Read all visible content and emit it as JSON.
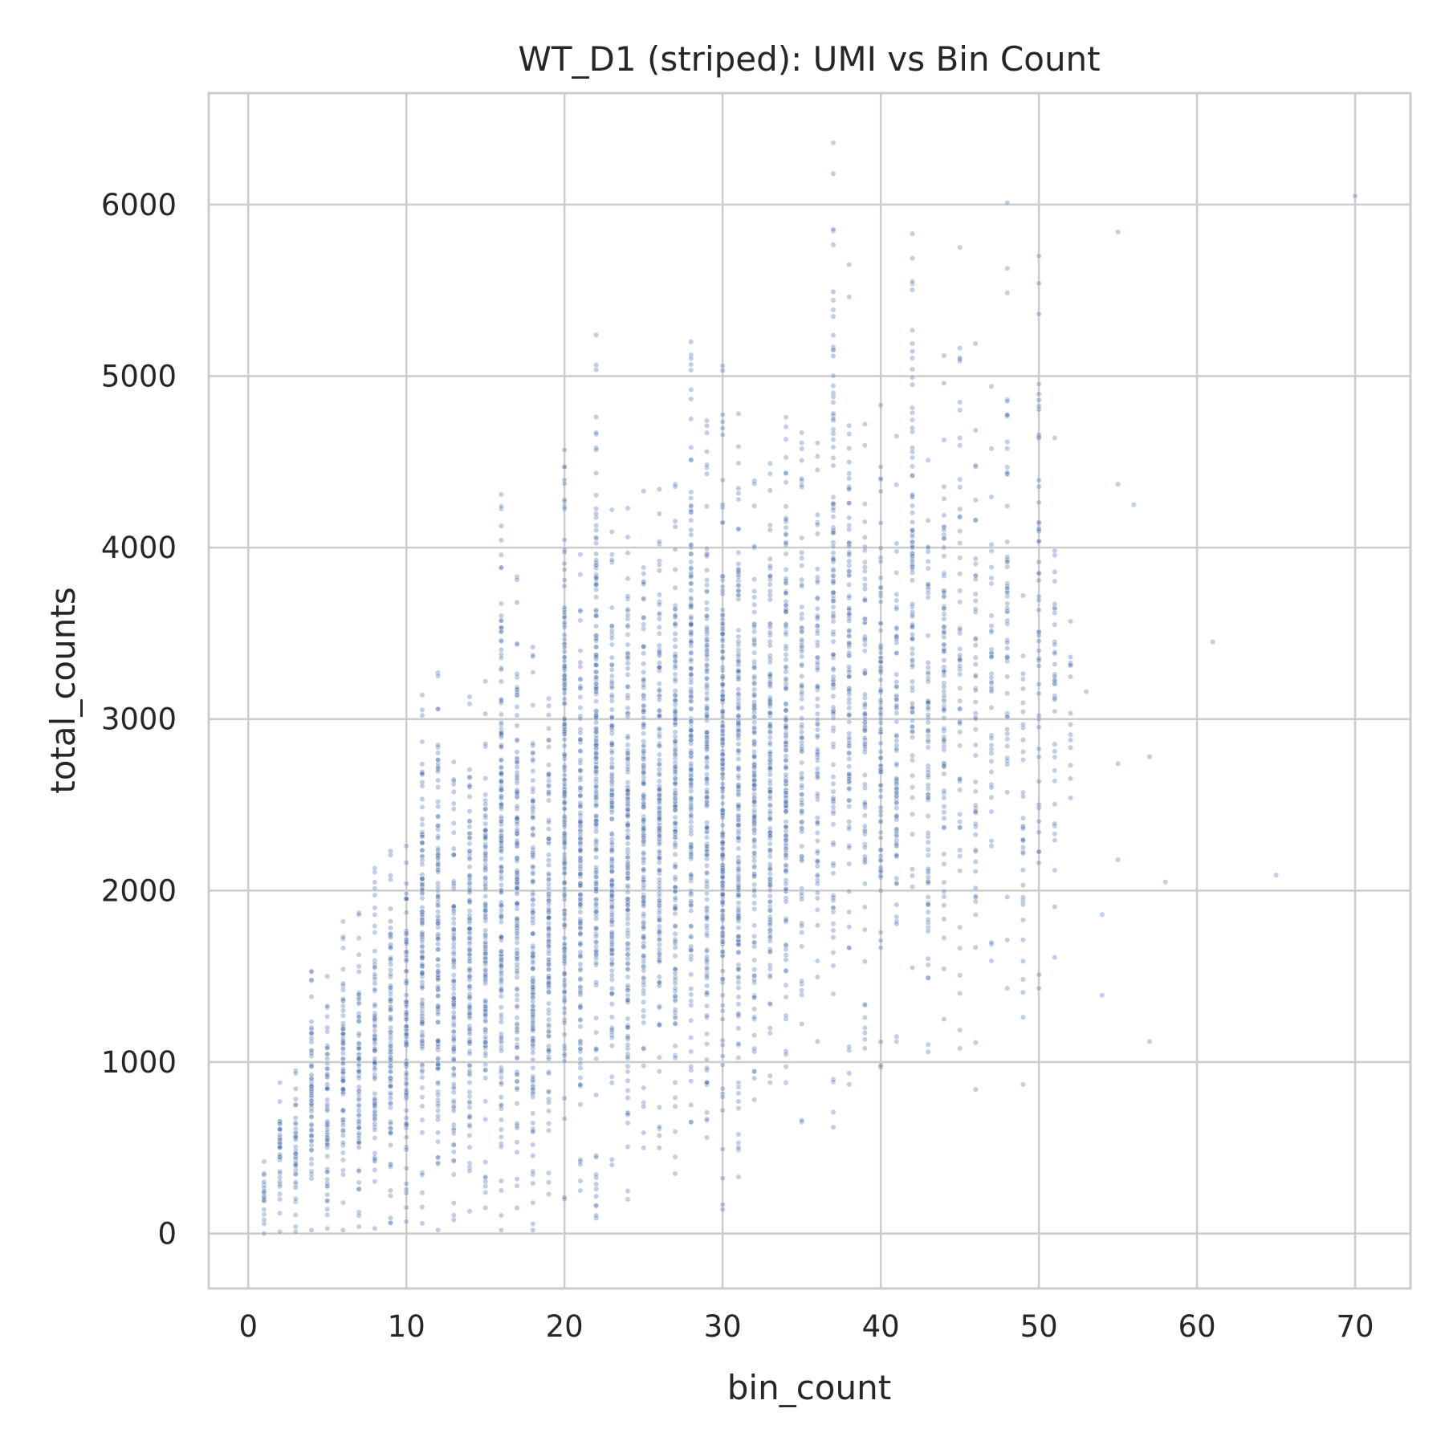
{
  "chart_data": {
    "type": "scatter",
    "title": "WT_D1 (striped): UMI vs Bin Count",
    "xlabel": "bin_count",
    "ylabel": "total_counts",
    "xlim": [
      -2.5,
      73.5
    ],
    "ylim": [
      -320,
      6650
    ],
    "xticks": [
      0,
      10,
      20,
      30,
      40,
      50,
      60,
      70
    ],
    "yticks": [
      0,
      1000,
      2000,
      3000,
      4000,
      5000,
      6000
    ],
    "grid": true,
    "legend": "none",
    "marker_color": "#4c72b0",
    "marker_alpha": 0.35,
    "column_ranges": [
      {
        "x": 1,
        "min": 0,
        "max": 420
      },
      {
        "x": 2,
        "min": 10,
        "max": 880
      },
      {
        "x": 3,
        "min": 10,
        "max": 950
      },
      {
        "x": 4,
        "min": 20,
        "max": 1530
      },
      {
        "x": 5,
        "min": 30,
        "max": 1500
      },
      {
        "x": 6,
        "min": 20,
        "max": 1820
      },
      {
        "x": 7,
        "min": 40,
        "max": 1870
      },
      {
        "x": 8,
        "min": 30,
        "max": 2130
      },
      {
        "x": 9,
        "min": 60,
        "max": 2230
      },
      {
        "x": 10,
        "min": 70,
        "max": 2260
      },
      {
        "x": 11,
        "min": 60,
        "max": 3140
      },
      {
        "x": 12,
        "min": 20,
        "max": 3270
      },
      {
        "x": 13,
        "min": 80,
        "max": 2750
      },
      {
        "x": 14,
        "min": 130,
        "max": 3130
      },
      {
        "x": 15,
        "min": 150,
        "max": 3220
      },
      {
        "x": 16,
        "min": 20,
        "max": 4310
      },
      {
        "x": 17,
        "min": 150,
        "max": 3830
      },
      {
        "x": 18,
        "min": 20,
        "max": 3420
      },
      {
        "x": 19,
        "min": 230,
        "max": 3120
      },
      {
        "x": 20,
        "min": 200,
        "max": 4570
      },
      {
        "x": 21,
        "min": 250,
        "max": 3960
      },
      {
        "x": 22,
        "min": 90,
        "max": 5240
      },
      {
        "x": 23,
        "min": 400,
        "max": 4220
      },
      {
        "x": 24,
        "min": 200,
        "max": 4230
      },
      {
        "x": 25,
        "min": 500,
        "max": 4330
      },
      {
        "x": 26,
        "min": 500,
        "max": 4340
      },
      {
        "x": 27,
        "min": 350,
        "max": 4370
      },
      {
        "x": 28,
        "min": 650,
        "max": 5200
      },
      {
        "x": 29,
        "min": 560,
        "max": 4740
      },
      {
        "x": 30,
        "min": 140,
        "max": 5060
      },
      {
        "x": 31,
        "min": 330,
        "max": 4780
      },
      {
        "x": 32,
        "min": 780,
        "max": 4390
      },
      {
        "x": 33,
        "min": 880,
        "max": 4490
      },
      {
        "x": 34,
        "min": 880,
        "max": 4760
      },
      {
        "x": 35,
        "min": 650,
        "max": 4670
      },
      {
        "x": 36,
        "min": 1120,
        "max": 4610
      },
      {
        "x": 37,
        "min": 620,
        "max": 6360
      },
      {
        "x": 38,
        "min": 870,
        "max": 5650
      },
      {
        "x": 39,
        "min": 1080,
        "max": 4720
      },
      {
        "x": 40,
        "min": 970,
        "max": 4830
      },
      {
        "x": 41,
        "min": 1120,
        "max": 4650
      },
      {
        "x": 42,
        "min": 1550,
        "max": 5830
      },
      {
        "x": 43,
        "min": 1060,
        "max": 4510
      },
      {
        "x": 44,
        "min": 1250,
        "max": 5120
      },
      {
        "x": 45,
        "min": 1080,
        "max": 5750
      },
      {
        "x": 46,
        "min": 840,
        "max": 5190
      },
      {
        "x": 47,
        "min": 1590,
        "max": 4940
      },
      {
        "x": 48,
        "min": 1430,
        "max": 6010
      },
      {
        "x": 49,
        "min": 870,
        "max": 3720
      },
      {
        "x": 50,
        "min": 1430,
        "max": 5700
      },
      {
        "x": 51,
        "min": 1610,
        "max": 4640
      },
      {
        "x": 52,
        "min": 2540,
        "max": 3570
      }
    ],
    "points": [
      {
        "x": 53,
        "y": 3160
      },
      {
        "x": 54,
        "y": 1860
      },
      {
        "x": 54,
        "y": 1390
      },
      {
        "x": 55,
        "y": 5840
      },
      {
        "x": 55,
        "y": 4370
      },
      {
        "x": 55,
        "y": 2740
      },
      {
        "x": 55,
        "y": 2180
      },
      {
        "x": 56,
        "y": 4250
      },
      {
        "x": 57,
        "y": 2780
      },
      {
        "x": 57,
        "y": 1120
      },
      {
        "x": 58,
        "y": 2050
      },
      {
        "x": 61,
        "y": 3450
      },
      {
        "x": 65,
        "y": 2090
      },
      {
        "x": 70,
        "y": 6050
      }
    ]
  }
}
